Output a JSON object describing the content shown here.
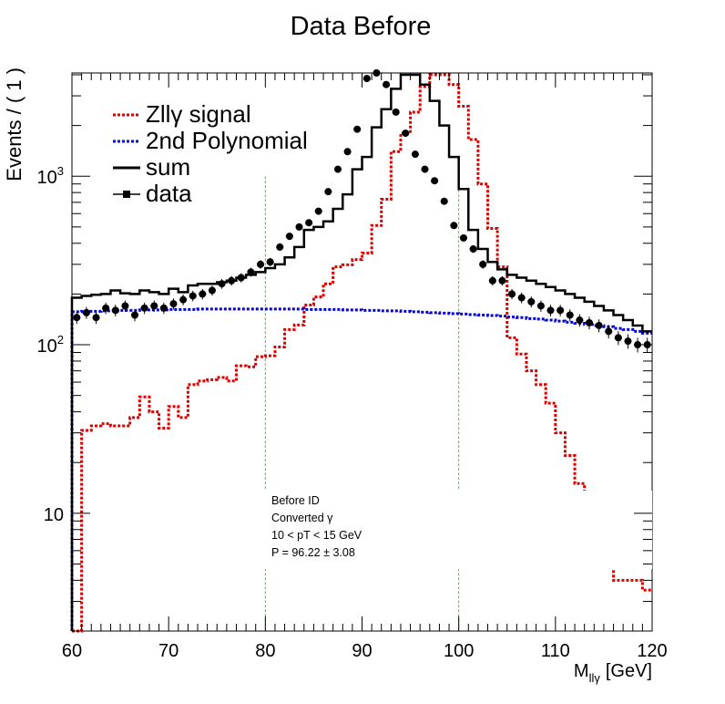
{
  "chart_data": {
    "type": "line",
    "title": "Data Before",
    "ylabel": "Events / ( 1 )",
    "xlabel_main": "M",
    "xlabel_sub": "llγ",
    "xlabel_unit": "[GeV]",
    "xlim": [
      60,
      120
    ],
    "ylim": [
      2,
      4100
    ],
    "yscale": "log",
    "xticks": [
      "60",
      "70",
      "80",
      "90",
      "100",
      "110",
      "120"
    ],
    "yticks": [
      {
        "value": 10,
        "base": "10",
        "exp": ""
      },
      {
        "value": 100,
        "base": "10",
        "exp": "2"
      },
      {
        "value": 1000,
        "base": "10",
        "exp": "3"
      }
    ],
    "legend": [
      {
        "label": "Zllγ signal",
        "style": "dotted",
        "color": "#dd0000"
      },
      {
        "label": "2nd Polynomial",
        "style": "dotted",
        "color": "#0000dd"
      },
      {
        "label": "sum",
        "style": "solid",
        "color": "#000000"
      },
      {
        "label": "data",
        "style": "marker",
        "color": "#000000"
      }
    ],
    "annotations": [
      "Before ID",
      "Converted γ",
      "10 < pT < 15 GeV",
      "P = 96.22 ± 3.08"
    ],
    "vlines": [
      80,
      100
    ],
    "colors": {
      "signal": "#dd0000",
      "background": "#0000dd",
      "sum": "#000000",
      "data": "#000000",
      "vline": "#33cc33"
    },
    "series": [
      {
        "name": "Zllγ signal",
        "values": [
          2,
          31,
          33,
          34,
          33,
          33,
          37,
          49,
          40,
          32,
          43,
          37,
          58,
          61,
          62,
          64,
          61,
          75,
          74,
          85,
          86,
          97,
          123,
          131,
          172,
          192,
          230,
          290,
          298,
          320,
          350,
          510,
          730,
          1400,
          1800,
          2400,
          3400,
          4000,
          4000,
          3500,
          2600,
          1650,
          900,
          490,
          290,
          110,
          88,
          70,
          58,
          45,
          30,
          22,
          15,
          10,
          8,
          5,
          4,
          4,
          4,
          3.5
        ]
      },
      {
        "name": "2nd Polynomial",
        "values": [
          157,
          158,
          158,
          159,
          159,
          160,
          160,
          161,
          161,
          161,
          162,
          162,
          162,
          163,
          163,
          163,
          163,
          163,
          163,
          163,
          163,
          163,
          163,
          163,
          162,
          162,
          162,
          162,
          161,
          161,
          160,
          160,
          159,
          159,
          158,
          157,
          156,
          155,
          154,
          153,
          152,
          151,
          150,
          149,
          148,
          146,
          145,
          143,
          142,
          140,
          138,
          136,
          134,
          132,
          130,
          128,
          125,
          123,
          120,
          117
        ]
      },
      {
        "name": "sum",
        "values": [
          190,
          195,
          198,
          200,
          210,
          202,
          200,
          210,
          205,
          200,
          215,
          205,
          225,
          230,
          230,
          235,
          240,
          250,
          260,
          270,
          285,
          300,
          330,
          380,
          480,
          500,
          540,
          640,
          780,
          1100,
          1300,
          1950,
          2500,
          3300,
          4000,
          4000,
          3500,
          2800,
          2000,
          1300,
          840,
          480,
          370,
          310,
          280,
          260,
          250,
          240,
          230,
          220,
          210,
          200,
          190,
          180,
          170,
          160,
          150,
          140,
          130,
          120
        ]
      },
      {
        "name": "data",
        "x": [
          60.5,
          61.5,
          62.5,
          63.5,
          64.5,
          65.5,
          66.5,
          67.5,
          68.5,
          69.5,
          70.5,
          71.5,
          72.5,
          73.5,
          74.5,
          75.5,
          76.5,
          77.5,
          78.5,
          79.5,
          80.5,
          81.5,
          82.5,
          83.5,
          84.5,
          85.5,
          86.5,
          87.5,
          88.5,
          89.5,
          90.5,
          91.5,
          92.5,
          93.5,
          94.5,
          95.5,
          96.5,
          97.5,
          98.5,
          99.5,
          100.5,
          101.5,
          102.5,
          103.5,
          104.5,
          105.5,
          106.5,
          107.5,
          108.5,
          109.5,
          110.5,
          111.5,
          112.5,
          113.5,
          114.5,
          115.5,
          116.5,
          117.5,
          118.5,
          119.5
        ],
        "values": [
          145,
          155,
          145,
          165,
          160,
          170,
          150,
          165,
          170,
          165,
          175,
          185,
          195,
          200,
          210,
          230,
          240,
          250,
          270,
          300,
          310,
          380,
          440,
          500,
          530,
          620,
          810,
          1100,
          1400,
          1900,
          3800,
          4100,
          3500,
          2400,
          1800,
          1350,
          1100,
          940,
          710,
          510,
          430,
          370,
          300,
          240,
          240,
          200,
          190,
          180,
          170,
          160,
          160,
          150,
          140,
          135,
          130,
          120,
          110,
          105,
          100,
          100
        ]
      }
    ]
  }
}
